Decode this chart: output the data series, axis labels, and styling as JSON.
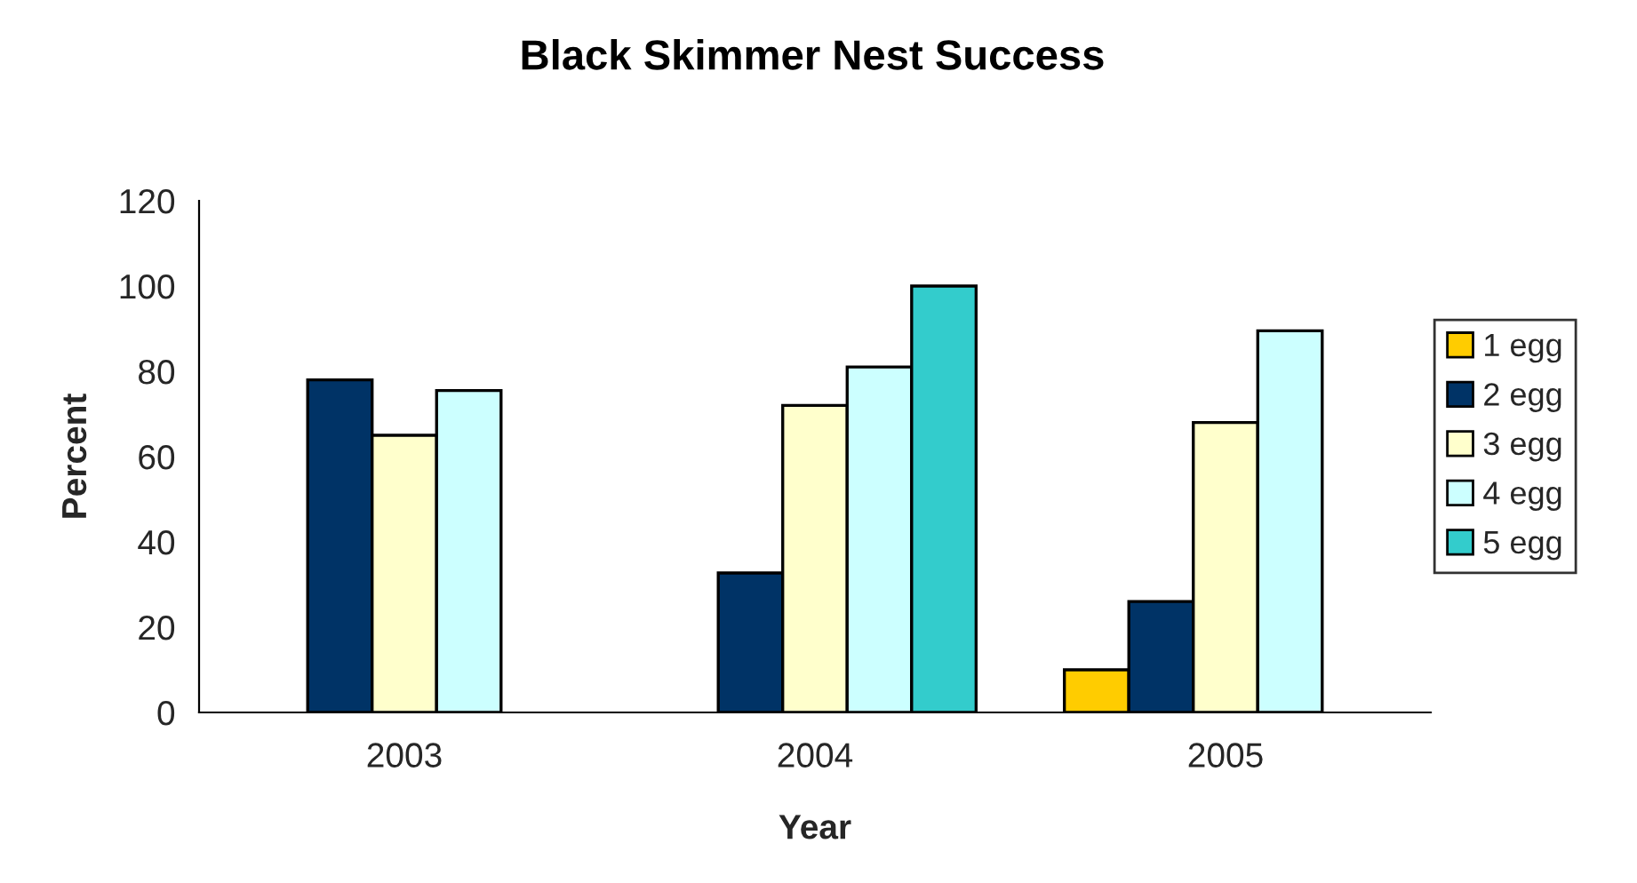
{
  "chart_data": {
    "type": "bar",
    "title": "Black Skimmer Nest Success",
    "xlabel": "Year",
    "ylabel": "Percent",
    "categories": [
      "2003",
      "2004",
      "2005"
    ],
    "series": [
      {
        "name": "1 egg",
        "color": "#ffcc00",
        "values": [
          null,
          null,
          10
        ]
      },
      {
        "name": "2 egg",
        "color": "#003366",
        "values": [
          78,
          32.7,
          26
        ]
      },
      {
        "name": "3 egg",
        "color": "#ffffcc",
        "values": [
          65,
          72,
          68
        ]
      },
      {
        "name": "4 egg",
        "color": "#ccffff",
        "values": [
          75.5,
          81,
          89.5
        ]
      },
      {
        "name": "5 egg",
        "color": "#33cccc",
        "values": [
          null,
          100,
          null
        ]
      }
    ],
    "ylim": [
      0,
      120
    ],
    "yticks": [
      0,
      20,
      40,
      60,
      80,
      100,
      120
    ],
    "grid": false,
    "legend": "right"
  }
}
